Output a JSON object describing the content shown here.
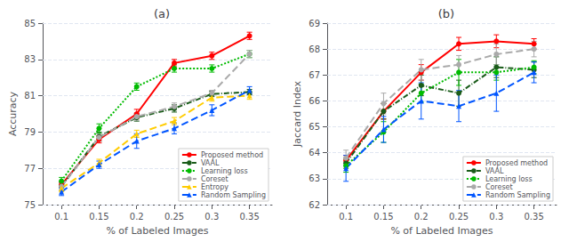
{
  "chart_data": [
    {
      "type": "line",
      "title": "(a)",
      "xlabel": "% of Labeled Images",
      "ylabel": "Accuracy",
      "x": [
        0.1,
        0.15,
        0.2,
        0.25,
        0.3,
        0.35
      ],
      "xlim": [
        0.075,
        0.38
      ],
      "xticks": [
        0.1,
        0.15,
        0.2,
        0.25,
        0.3,
        0.35
      ],
      "ylim": [
        75,
        85
      ],
      "yticks": [
        75,
        77,
        79,
        81,
        83,
        85
      ],
      "grid": true,
      "legend": "lower right",
      "series": [
        {
          "name": "Proposed method",
          "color": "#ff0000",
          "marker": "circle",
          "line_style": "solid",
          "values": [
            76.1,
            78.6,
            80.0,
            82.8,
            83.2,
            84.3
          ],
          "yerr": [
            0.15,
            0.2,
            0.25,
            0.2,
            0.2,
            0.2
          ]
        },
        {
          "name": "VAAL",
          "color": "#1a5c1a",
          "marker": "circle",
          "line_style": "dashdot",
          "values": [
            76.0,
            78.75,
            79.8,
            80.3,
            81.1,
            81.2
          ],
          "yerr": [
            0.2,
            0.25,
            0.2,
            0.2,
            0.15,
            0.15
          ]
        },
        {
          "name": "Learning loss",
          "color": "#00bb00",
          "marker": "circle",
          "line_style": "dotted",
          "values": [
            76.3,
            79.2,
            81.5,
            82.5,
            82.5,
            83.3
          ],
          "yerr": [
            0.2,
            0.25,
            0.2,
            0.2,
            0.2,
            0.2
          ]
        },
        {
          "name": "Coreset",
          "color": "#aaaaaa",
          "marker": "circle",
          "line_style": "dashed",
          "values": [
            76.0,
            78.7,
            79.85,
            80.4,
            81.15,
            83.3
          ],
          "yerr": [
            0.2,
            0.2,
            0.2,
            0.2,
            0.15,
            0.2
          ]
        },
        {
          "name": "Entropy",
          "color": "#ffcc00",
          "marker": "triangle",
          "line_style": "dashed",
          "values": [
            75.9,
            77.3,
            78.9,
            79.6,
            80.9,
            81.0
          ],
          "yerr": [
            0.2,
            0.2,
            0.2,
            0.2,
            0.2,
            0.2
          ]
        },
        {
          "name": "Random Sampling",
          "color": "#0055ff",
          "marker": "triangle",
          "line_style": "dashed",
          "values": [
            75.7,
            77.2,
            78.5,
            79.2,
            80.2,
            81.3
          ],
          "yerr": [
            0.2,
            0.2,
            0.4,
            0.3,
            0.3,
            0.2
          ]
        }
      ]
    },
    {
      "type": "line",
      "title": "(b)",
      "xlabel": "% of Labeled Images",
      "ylabel": "Jaccard Index",
      "x": [
        0.1,
        0.15,
        0.2,
        0.25,
        0.3,
        0.35
      ],
      "xlim": [
        0.075,
        0.38
      ],
      "xticks": [
        0.1,
        0.15,
        0.2,
        0.25,
        0.3,
        0.35
      ],
      "ylim": [
        62,
        69
      ],
      "yticks": [
        62,
        63,
        64,
        65,
        66,
        67,
        68,
        69
      ],
      "grid": true,
      "legend": "lower right",
      "series": [
        {
          "name": "Proposed method",
          "color": "#ff0000",
          "marker": "circle",
          "line_style": "solid",
          "values": [
            63.7,
            65.6,
            67.1,
            68.2,
            68.3,
            68.2
          ],
          "yerr": [
            0.2,
            0.3,
            0.3,
            0.25,
            0.25,
            0.2
          ]
        },
        {
          "name": "VAAL",
          "color": "#1a5c1a",
          "marker": "circle",
          "line_style": "dashdot",
          "values": [
            63.6,
            65.6,
            66.6,
            66.3,
            67.3,
            67.2
          ],
          "yerr": [
            0.2,
            0.3,
            0.4,
            0.5,
            0.4,
            0.3
          ]
        },
        {
          "name": "Learning loss",
          "color": "#00bb00",
          "marker": "circle",
          "line_style": "dotted",
          "values": [
            63.5,
            64.8,
            66.3,
            67.1,
            67.1,
            67.3
          ],
          "yerr": [
            0.25,
            0.4,
            0.35,
            0.5,
            0.3,
            0.25
          ]
        },
        {
          "name": "Coreset",
          "color": "#aaaaaa",
          "marker": "circle",
          "line_style": "dashed",
          "values": [
            63.8,
            65.9,
            67.2,
            67.4,
            67.8,
            68.0
          ],
          "yerr": [
            0.3,
            0.4,
            0.4,
            0.35,
            0.4,
            0.3
          ]
        },
        {
          "name": "Random Sampling",
          "color": "#0055ff",
          "marker": "triangle",
          "line_style": "dashed",
          "values": [
            63.4,
            64.9,
            66.0,
            65.8,
            66.3,
            67.1
          ],
          "yerr": [
            0.5,
            0.5,
            0.7,
            0.6,
            0.7,
            0.4
          ]
        }
      ]
    }
  ]
}
